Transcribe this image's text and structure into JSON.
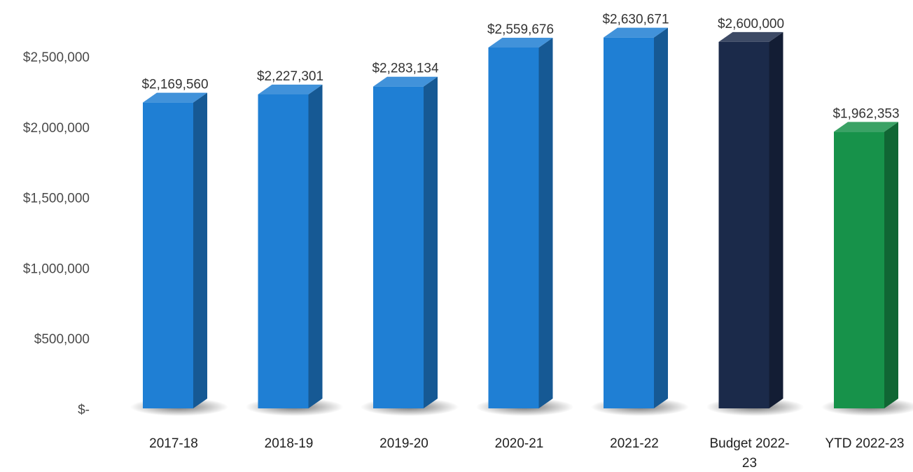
{
  "chart_data": {
    "type": "bar",
    "categories": [
      "2017-18",
      "2018-19",
      "2019-20",
      "2020-21",
      "2021-22",
      "Budget 2022-23",
      "YTD 2022-23"
    ],
    "category_lines": [
      [
        "2017-18"
      ],
      [
        "2018-19"
      ],
      [
        "2019-20"
      ],
      [
        "2020-21"
      ],
      [
        "2021-22"
      ],
      [
        "Budget 2022-",
        "23"
      ],
      [
        "YTD 2022-23"
      ]
    ],
    "values": [
      2169560,
      2227301,
      2283134,
      2559676,
      2630671,
      2600000,
      1962353
    ],
    "value_labels": [
      "$2,169,560",
      "$2,227,301",
      "$2,283,134",
      "$2,559,676",
      "$2,630,671",
      "$2,600,000",
      "$1,962,353"
    ],
    "bar_colors": [
      "#1f7fd4",
      "#1f7fd4",
      "#1f7fd4",
      "#1f7fd4",
      "#1f7fd4",
      "#1b2a4a",
      "#17924a"
    ],
    "ylim": [
      0,
      2500000
    ],
    "y_ticks": [
      0,
      500000,
      1000000,
      1500000,
      2000000,
      2500000
    ],
    "y_tick_labels": [
      "$-",
      "$500,000",
      "$1,000,000",
      "$1,500,000",
      "$2,000,000",
      "$2,500,000"
    ],
    "grid": false,
    "legend": "none",
    "title": "",
    "xlabel": "",
    "ylabel": ""
  }
}
